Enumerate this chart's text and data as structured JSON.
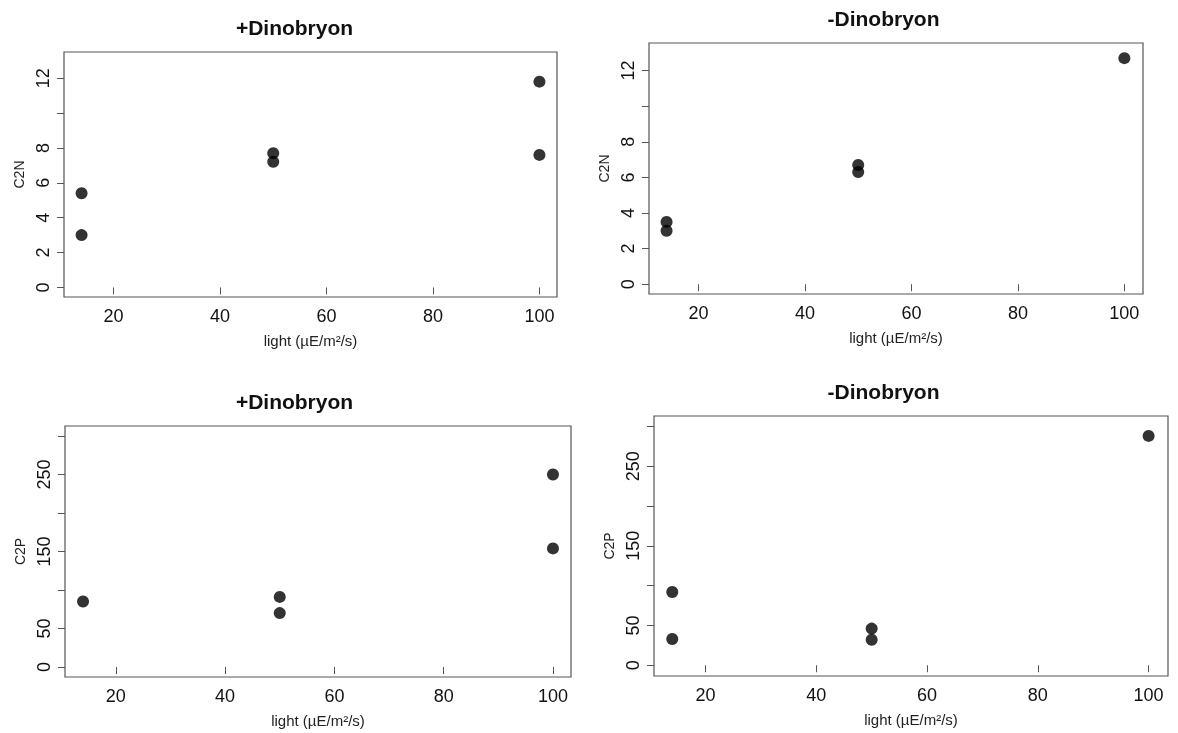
{
  "chart_data": [
    {
      "type": "scatter",
      "title": "+Dinobryon",
      "xlabel": "light (µE/m²/s)",
      "ylabel": "C2N",
      "marker": "circle",
      "series": [
        {
          "color": "#000000",
          "x": [
            14,
            14,
            50,
            50,
            100,
            100
          ],
          "values": [
            5.4,
            3.0,
            7.7,
            7.2,
            11.8,
            7.6
          ]
        }
      ],
      "xlim": [
        10.7,
        103.3
      ],
      "xticks": [
        20,
        40,
        60,
        80,
        100
      ],
      "ylim": [
        -0.55,
        13.5
      ],
      "yticks": [
        0,
        2,
        4,
        6,
        8,
        {
          "value": 10,
          "label": null
        },
        12
      ]
    },
    {
      "type": "scatter",
      "title": "-Dinobryon",
      "xlabel": "light (µE/m²/s)",
      "ylabel": "C2N",
      "marker": "circle",
      "series": [
        {
          "color": "#000000",
          "x": [
            14,
            14,
            50,
            50,
            100
          ],
          "values": [
            3.5,
            3.0,
            6.7,
            6.3,
            12.7
          ]
        }
      ],
      "xlim": [
        10.7,
        103.5
      ],
      "xticks": [
        20,
        40,
        60,
        80,
        100
      ],
      "ylim": [
        -0.55,
        13.55
      ],
      "yticks": [
        0,
        2,
        4,
        6,
        8,
        {
          "value": 10,
          "label": null
        },
        12
      ]
    },
    {
      "type": "scatter",
      "title": "+Dinobryon",
      "xlabel": "light (µE/m²/s)",
      "ylabel": "C2P",
      "marker": "circle",
      "series": [
        {
          "color": "#000000",
          "x": [
            14,
            50,
            50,
            100,
            100
          ],
          "values": [
            85,
            91,
            70,
            250,
            154
          ]
        }
      ],
      "xlim": [
        10.7,
        103.3
      ],
      "xticks": [
        20,
        40,
        60,
        80,
        100
      ],
      "ylim": [
        -13,
        313
      ],
      "yticks": [
        0,
        50,
        {
          "value": 100,
          "label": null
        },
        150,
        {
          "value": 200,
          "label": null
        },
        250,
        {
          "value": 300,
          "label": null
        }
      ]
    },
    {
      "type": "scatter",
      "title": "-Dinobryon",
      "xlabel": "light (µE/m²/s)",
      "ylabel": "C2P",
      "marker": "circle",
      "series": [
        {
          "color": "#000000",
          "x": [
            14,
            14,
            50,
            50,
            100
          ],
          "values": [
            92,
            33,
            46,
            32,
            288
          ]
        }
      ],
      "xlim": [
        10.7,
        103.5
      ],
      "xticks": [
        20,
        40,
        60,
        80,
        100
      ],
      "ylim": [
        -13.5,
        313
      ],
      "yticks": [
        0,
        50,
        {
          "value": 100,
          "label": null
        },
        150,
        {
          "value": 200,
          "label": null
        },
        250,
        {
          "value": 300,
          "label": null
        }
      ]
    }
  ]
}
